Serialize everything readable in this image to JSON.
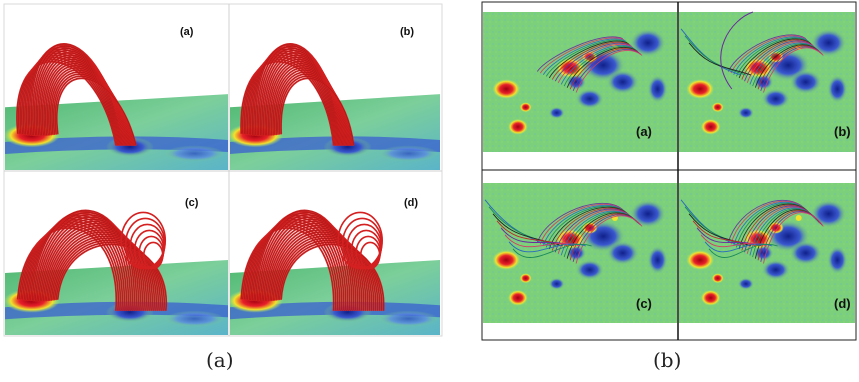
{
  "figure": {
    "caption_left": "(a)",
    "caption_right": "(b)",
    "left_panels": [
      "(a)",
      "(b)",
      "(c)",
      "(d)"
    ],
    "right_panels": [
      "(a)",
      "(b)",
      "(c)",
      "(d)"
    ]
  },
  "colors": {
    "loop_red": "#d42020",
    "magnetogram_green": "#7bd07a",
    "blue_polarity": "#2a3fb5",
    "red_polarity": "#e8202a",
    "yellow_polarity": "#f2e22a",
    "background": "#ffffff"
  }
}
